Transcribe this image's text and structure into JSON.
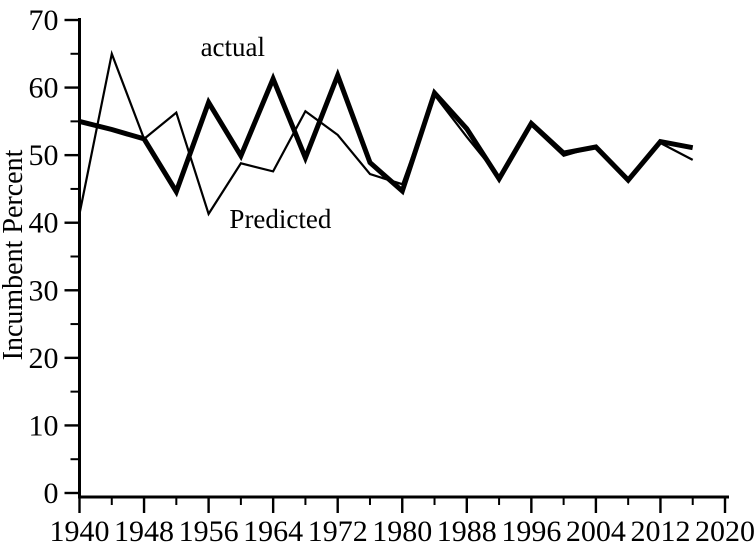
{
  "chart_data": {
    "type": "line",
    "title": "",
    "xlabel": "",
    "ylabel": "Incumbent Percent",
    "xlim": [
      1940,
      2020
    ],
    "ylim": [
      0,
      70
    ],
    "grid": false,
    "legend_position": "inline-annotations",
    "x": [
      1940,
      1944,
      1948,
      1952,
      1956,
      1960,
      1964,
      1968,
      1972,
      1976,
      1980,
      1984,
      1988,
      1992,
      1996,
      2000,
      2004,
      2008,
      2012,
      2016
    ],
    "series": [
      {
        "name": "actual",
        "label": "actual",
        "weight": "thick",
        "values": [
          55.0,
          53.8,
          52.4,
          44.6,
          57.8,
          49.9,
          61.3,
          49.6,
          61.8,
          48.9,
          44.7,
          59.2,
          53.9,
          46.5,
          54.7,
          50.3,
          51.2,
          46.3,
          52.0,
          51.1
        ]
      },
      {
        "name": "predicted",
        "label": "Predicted",
        "weight": "thin",
        "values": [
          41.3,
          65.0,
          52.4,
          56.3,
          41.3,
          48.8,
          47.6,
          56.5,
          53.0,
          47.2,
          45.7,
          58.9,
          52.7,
          46.8,
          54.4,
          49.9,
          51.3,
          46.4,
          51.8,
          49.3
        ]
      }
    ],
    "annotations": [
      {
        "text": "actual",
        "x": 1959.0,
        "y": 64.7
      },
      {
        "text": "Predicted",
        "x": 1964.9,
        "y": 39.2
      }
    ],
    "x_major_ticks": [
      1940,
      1948,
      1956,
      1964,
      1972,
      1980,
      1988,
      1996,
      2004,
      2012,
      2020
    ],
    "x_minor_ticks": [
      1944,
      1952,
      1960,
      1968,
      1976,
      1984,
      1992,
      2000,
      2008,
      2016
    ],
    "y_major_ticks": [
      0,
      10,
      20,
      30,
      40,
      50,
      60,
      70
    ],
    "y_minor_ticks": [
      5,
      15,
      25,
      35,
      45,
      55,
      65
    ],
    "colors": {
      "line": "#000000",
      "background": "#ffffff"
    }
  }
}
